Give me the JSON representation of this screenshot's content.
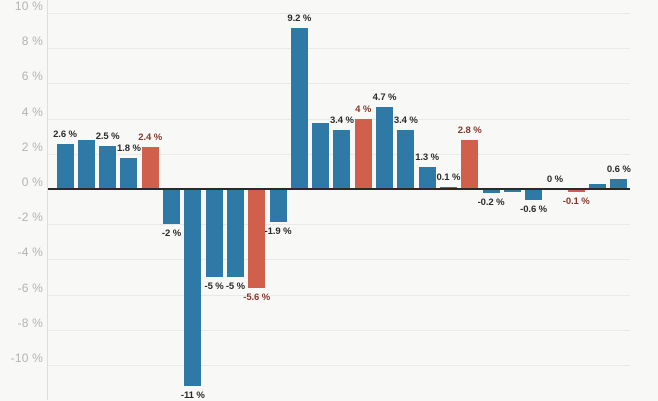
{
  "chart_data": {
    "type": "bar",
    "title": "",
    "unit": "%",
    "ylim": [
      -10,
      10
    ],
    "grid": true,
    "legend": "none",
    "y_axis": {
      "ticks": [
        {
          "value": 10,
          "label": "10 %"
        },
        {
          "value": 8,
          "label": "8 %"
        },
        {
          "value": 6,
          "label": "6 %"
        },
        {
          "value": 4,
          "label": "4 %"
        },
        {
          "value": 2,
          "label": "2 %"
        },
        {
          "value": 0,
          "label": "0 %"
        },
        {
          "value": -2,
          "label": "-2 %"
        },
        {
          "value": -4,
          "label": "-4 %"
        },
        {
          "value": -6,
          "label": "-6 %"
        },
        {
          "value": -8,
          "label": "-8 %"
        },
        {
          "value": -10,
          "label": "-10 %"
        }
      ]
    },
    "colors": {
      "blue": "#2e79a5",
      "red": "#d0604c",
      "label_blue_bars": "#2a2a2a",
      "label_red_bars": "#85382b",
      "grid": "#e9e9e6",
      "zero_line": "#2a2a2a",
      "axis_text": "#b3b3b3",
      "background": "#f8f8f7"
    },
    "bars": [
      {
        "value": 2.6,
        "label": "2.6 %",
        "color": "blue"
      },
      {
        "value": 2.8,
        "label": "",
        "color": "blue"
      },
      {
        "value": 2.5,
        "label": "2.5 %",
        "color": "blue"
      },
      {
        "value": 1.8,
        "label": "1.8 %",
        "color": "blue"
      },
      {
        "value": 2.4,
        "label": "2.4 %",
        "color": "red"
      },
      {
        "value": -2,
        "label": "-2 %",
        "color": "blue"
      },
      {
        "value": -11.2,
        "label": "-11 %",
        "color": "blue"
      },
      {
        "value": -5,
        "label": "-5 %",
        "color": "blue"
      },
      {
        "value": -5,
        "label": "-5 %",
        "color": "blue"
      },
      {
        "value": -5.6,
        "label": "-5.6 %",
        "color": "red"
      },
      {
        "value": -1.9,
        "label": "-1.9 %",
        "color": "blue"
      },
      {
        "value": 9.2,
        "label": "9.2 %",
        "color": "blue"
      },
      {
        "value": 3.8,
        "label": "",
        "color": "blue"
      },
      {
        "value": 3.4,
        "label": "3.4 %",
        "color": "blue"
      },
      {
        "value": 4,
        "label": "4 %",
        "color": "red"
      },
      {
        "value": 4.7,
        "label": "4.7 %",
        "color": "blue"
      },
      {
        "value": 3.4,
        "label": "3.4 %",
        "color": "blue"
      },
      {
        "value": 1.3,
        "label": "1.3 %",
        "color": "blue"
      },
      {
        "value": 0.1,
        "label": "0.1 %",
        "color": "blue"
      },
      {
        "value": 2.8,
        "label": "2.8 %",
        "color": "red"
      },
      {
        "value": -0.2,
        "label": "-0.2 %",
        "color": "blue"
      },
      {
        "value": -0.1,
        "label": "",
        "color": "blue"
      },
      {
        "value": -0.6,
        "label": "-0.6 %",
        "color": "blue"
      },
      {
        "value": 0,
        "label": "0 %",
        "color": "blue"
      },
      {
        "value": -0.1,
        "label": "-0.1 %",
        "color": "red"
      },
      {
        "value": 0.3,
        "label": "",
        "color": "blue"
      },
      {
        "value": 0.6,
        "label": "0.6 %",
        "color": "blue"
      }
    ]
  }
}
